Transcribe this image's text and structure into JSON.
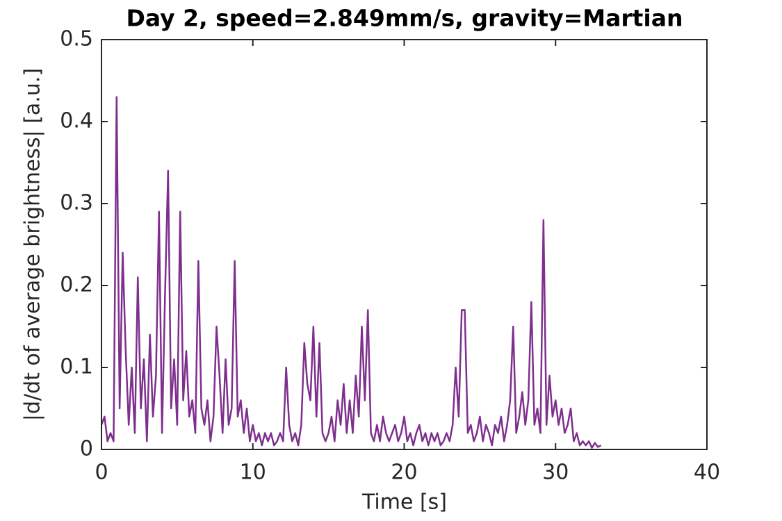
{
  "chart_data": {
    "type": "line",
    "title": "Day 2, speed=2.849mm/s, gravity=Martian",
    "x_label": "Time [s]",
    "y_label": "|d/dt of average brightness| [a.u.]",
    "xlim": [
      0,
      40
    ],
    "xticks": [
      0,
      10,
      20,
      30,
      40
    ],
    "ylim": [
      0,
      0.5
    ],
    "yticks": [
      0,
      0.1,
      0.2,
      0.3,
      0.4,
      0.5
    ],
    "grid": false,
    "x": [
      0,
      0.2,
      0.4,
      0.6,
      0.8,
      1,
      1.2,
      1.4,
      1.6,
      1.8,
      2,
      2.2,
      2.4,
      2.6,
      2.8,
      3,
      3.2,
      3.4,
      3.6,
      3.8,
      4,
      4.2,
      4.4,
      4.6,
      4.8,
      5,
      5.2,
      5.4,
      5.6,
      5.8,
      6,
      6.2,
      6.4,
      6.6,
      6.8,
      7,
      7.2,
      7.4,
      7.6,
      7.8,
      8,
      8.2,
      8.4,
      8.6,
      8.8,
      9,
      9.2,
      9.4,
      9.6,
      9.8,
      10,
      10.2,
      10.4,
      10.6,
      10.8,
      11,
      11.2,
      11.4,
      11.6,
      11.8,
      12,
      12.2,
      12.4,
      12.6,
      12.8,
      13,
      13.2,
      13.4,
      13.6,
      13.8,
      14,
      14.2,
      14.4,
      14.6,
      14.8,
      15,
      15.2,
      15.4,
      15.6,
      15.8,
      16,
      16.2,
      16.4,
      16.6,
      16.8,
      17,
      17.2,
      17.4,
      17.6,
      17.8,
      18,
      18.2,
      18.4,
      18.6,
      18.8,
      19,
      19.2,
      19.4,
      19.6,
      19.8,
      20,
      20.2,
      20.4,
      20.6,
      20.8,
      21,
      21.2,
      21.4,
      21.6,
      21.8,
      22,
      22.2,
      22.4,
      22.6,
      22.8,
      23,
      23.2,
      23.4,
      23.6,
      23.8,
      24,
      24.2,
      24.4,
      24.6,
      24.8,
      25,
      25.2,
      25.4,
      25.6,
      25.8,
      26,
      26.2,
      26.4,
      26.6,
      26.8,
      27,
      27.2,
      27.4,
      27.6,
      27.8,
      28,
      28.2,
      28.4,
      28.6,
      28.8,
      29,
      29.2,
      29.4,
      29.6,
      29.8,
      30,
      30.2,
      30.4,
      30.6,
      30.8,
      31,
      31.2,
      31.4,
      31.6,
      31.8,
      32,
      32.2,
      32.4,
      32.6,
      32.8,
      33
    ],
    "series": [
      {
        "color": "#7e2f8e",
        "values": [
          0.03,
          0.04,
          0.01,
          0.02,
          0.01,
          0.43,
          0.05,
          0.24,
          0.12,
          0.03,
          0.1,
          0.02,
          0.21,
          0.05,
          0.11,
          0.01,
          0.14,
          0.04,
          0.09,
          0.29,
          0.02,
          0.19,
          0.34,
          0.05,
          0.11,
          0.03,
          0.29,
          0.06,
          0.12,
          0.04,
          0.06,
          0.02,
          0.23,
          0.05,
          0.03,
          0.06,
          0.01,
          0.04,
          0.15,
          0.09,
          0.02,
          0.11,
          0.03,
          0.05,
          0.23,
          0.04,
          0.06,
          0.02,
          0.05,
          0.01,
          0.03,
          0.01,
          0.02,
          0.005,
          0.02,
          0.01,
          0.02,
          0.005,
          0.01,
          0.02,
          0.01,
          0.1,
          0.03,
          0.01,
          0.02,
          0.005,
          0.03,
          0.13,
          0.08,
          0.06,
          0.15,
          0.04,
          0.13,
          0.02,
          0.01,
          0.02,
          0.04,
          0.01,
          0.06,
          0.03,
          0.08,
          0.02,
          0.06,
          0.02,
          0.09,
          0.04,
          0.15,
          0.06,
          0.17,
          0.02,
          0.01,
          0.03,
          0.01,
          0.04,
          0.02,
          0.01,
          0.02,
          0.03,
          0.01,
          0.02,
          0.04,
          0.01,
          0.02,
          0.005,
          0.02,
          0.03,
          0.01,
          0.02,
          0.005,
          0.02,
          0.01,
          0.02,
          0.005,
          0.01,
          0.02,
          0.01,
          0.03,
          0.1,
          0.04,
          0.17,
          0.17,
          0.02,
          0.03,
          0.01,
          0.02,
          0.04,
          0.01,
          0.03,
          0.02,
          0.005,
          0.03,
          0.02,
          0.04,
          0.01,
          0.03,
          0.06,
          0.15,
          0.02,
          0.04,
          0.07,
          0.03,
          0.06,
          0.18,
          0.03,
          0.05,
          0.02,
          0.28,
          0.03,
          0.09,
          0.04,
          0.06,
          0.03,
          0.05,
          0.02,
          0.03,
          0.05,
          0.01,
          0.02,
          0.005,
          0.01,
          0.005,
          0.01,
          0.002,
          0.008,
          0.003,
          0.005
        ]
      }
    ]
  }
}
